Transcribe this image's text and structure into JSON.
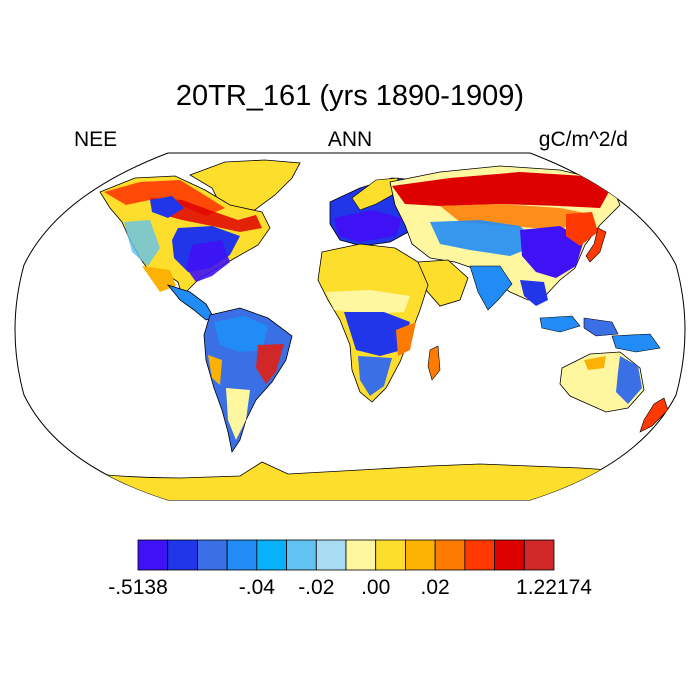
{
  "title": "20TR_161 (yrs 1890-1909)",
  "header": {
    "left": "NEE",
    "center": "ANN",
    "right": "gC/m^2/d"
  },
  "colorbar": {
    "colors": [
      "#3f12f5",
      "#2136e8",
      "#3a6fe6",
      "#218cf5",
      "#09b1f9",
      "#62c2f1",
      "#a9dcf3",
      "#fff79f",
      "#fede2c",
      "#fbb203",
      "#fe7b01",
      "#fe3a02",
      "#de0102",
      "#d02828"
    ],
    "tick_labels": [
      {
        "label": "-.5138",
        "boundary": 0
      },
      {
        "label": "-.04",
        "boundary": 4
      },
      {
        "label": "-.02",
        "boundary": 6
      },
      {
        "label": ".00",
        "boundary": 8
      },
      {
        "label": ".02",
        "boundary": 10
      },
      {
        "label": "1.22174",
        "boundary": 14
      }
    ]
  },
  "map": {
    "projection": "Robinson",
    "ocean_color": "#ffffff",
    "land_outline_color": "#000000"
  }
}
